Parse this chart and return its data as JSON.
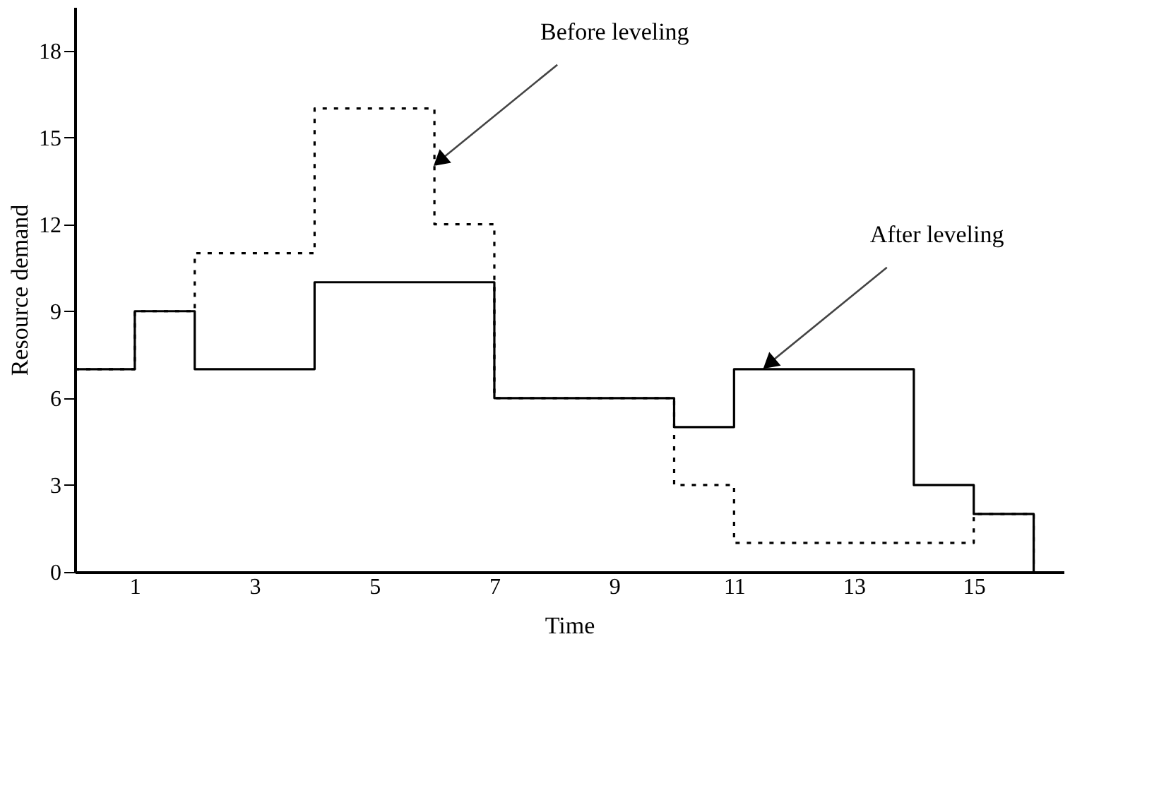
{
  "chart_data": {
    "type": "step",
    "xlabel": "Time",
    "ylabel": "Resource demand",
    "xlim": [
      0,
      16.5
    ],
    "xticks": [
      1,
      3,
      5,
      7,
      9,
      11,
      13,
      15
    ],
    "ylim": [
      0,
      19.5
    ],
    "yticks": [
      0,
      3,
      6,
      9,
      12,
      15,
      18
    ],
    "grid": false,
    "series": [
      {
        "color": "#000000",
        "line_style": "dotted",
        "x": [
          0,
          1,
          2,
          4,
          6,
          7,
          10,
          11,
          15,
          16
        ],
        "values": [
          7,
          9,
          11,
          16,
          12,
          6,
          3,
          1,
          2,
          0
        ]
      },
      {
        "color": "#000000",
        "line_style": "solid",
        "x": [
          0,
          1,
          2,
          4,
          7,
          10,
          11,
          14,
          15,
          16
        ],
        "values": [
          7,
          9,
          7,
          10,
          6,
          5,
          7,
          3,
          2,
          0
        ]
      }
    ],
    "annotations": [
      {
        "text": "Before leveling",
        "x": 6,
        "y": 14
      },
      {
        "text": "After leveling",
        "x": 11.5,
        "y": 7
      }
    ]
  }
}
